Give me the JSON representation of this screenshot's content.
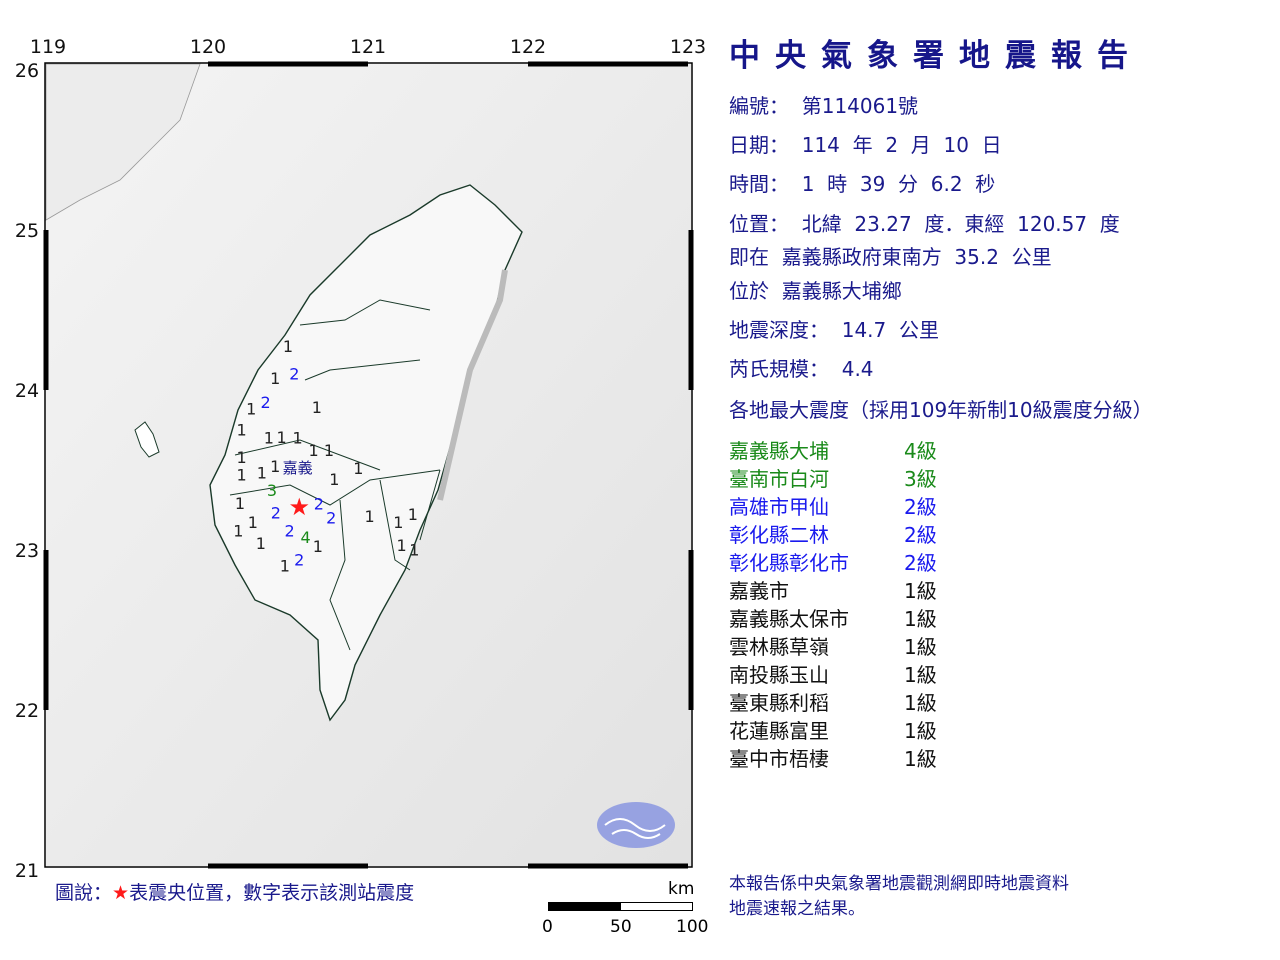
{
  "header": {
    "title": "中央氣象署地震報告"
  },
  "report": {
    "number": "編號：  第114061號",
    "date": "日期：  114  年  2  月  10  日",
    "time": "時間：  1  時  39  分  6.2  秒",
    "position": "位置：  北緯  23.27  度．東經  120.57  度",
    "relative": "即在  嘉義縣政府東南方  35.2  公里",
    "located": "位於  嘉義縣大埔鄉",
    "depth": "地震深度：  14.7  公里",
    "magnitude": "芮氏規模：  4.4",
    "intensity_heading": "各地最大震度（採用109年新制10級震度分級）"
  },
  "intensities": [
    {
      "place": "嘉義縣大埔",
      "level": "4級",
      "color": "#1a8a1a"
    },
    {
      "place": "臺南市白河",
      "level": "3級",
      "color": "#1a8a1a"
    },
    {
      "place": "高雄市甲仙",
      "level": "2級",
      "color": "#1a1aee"
    },
    {
      "place": "彰化縣二林",
      "level": "2級",
      "color": "#1a1aee"
    },
    {
      "place": "彰化縣彰化市",
      "level": "2級",
      "color": "#1a1aee"
    },
    {
      "place": "嘉義市",
      "level": "1級",
      "color": "#111111"
    },
    {
      "place": "嘉義縣太保市",
      "level": "1級",
      "color": "#111111"
    },
    {
      "place": "雲林縣草嶺",
      "level": "1級",
      "color": "#111111"
    },
    {
      "place": "南投縣玉山",
      "level": "1級",
      "color": "#111111"
    },
    {
      "place": "臺東縣利稻",
      "level": "1級",
      "color": "#111111"
    },
    {
      "place": "花蓮縣富里",
      "level": "1級",
      "color": "#111111"
    },
    {
      "place": "臺中市梧棲",
      "level": "1級",
      "color": "#111111"
    }
  ],
  "footer_note": [
    "本報告係中央氣象署地震觀測網即時地震資料",
    "地震速報之結果。"
  ],
  "map": {
    "lon_ticks": [
      "119",
      "120",
      "121",
      "122",
      "123"
    ],
    "lat_ticks": [
      "26",
      "25",
      "24",
      "23",
      "22",
      "21"
    ],
    "lon_range": [
      119,
      123
    ],
    "lat_range": [
      21,
      26
    ],
    "epicenter": {
      "lon": 120.57,
      "lat": 23.27,
      "color": "#ff1a1a"
    },
    "city_label": {
      "text": "嘉義",
      "lon": 120.56,
      "lat": 23.52
    },
    "level_colors": {
      "1": "#222222",
      "2": "#1a1aee",
      "3": "#1a8a1a",
      "4": "#1a8a1a"
    },
    "stations": [
      {
        "v": "1",
        "lon": 120.5,
        "lat": 24.28
      },
      {
        "v": "2",
        "lon": 120.54,
        "lat": 24.11
      },
      {
        "v": "1",
        "lon": 120.42,
        "lat": 24.08
      },
      {
        "v": "2",
        "lon": 120.36,
        "lat": 23.93
      },
      {
        "v": "1",
        "lon": 120.27,
        "lat": 23.89
      },
      {
        "v": "1",
        "lon": 120.21,
        "lat": 23.84
      },
      {
        "v": "1",
        "lon": 120.68,
        "lat": 23.9
      },
      {
        "v": "1",
        "lon": 120.21,
        "lat": 23.67
      },
      {
        "v": "1",
        "lon": 120.38,
        "lat": 23.71
      },
      {
        "v": "1",
        "lon": 120.56,
        "lat": 23.71
      },
      {
        "v": "1",
        "lon": 120.66,
        "lat": 23.63
      },
      {
        "v": "1",
        "lon": 120.7,
        "lat": 23.63
      },
      {
        "v": "1",
        "lon": 120.21,
        "lat": 23.56
      },
      {
        "v": "1",
        "lon": 120.28,
        "lat": 23.49
      },
      {
        "v": "1",
        "lon": 120.42,
        "lat": 23.53
      },
      {
        "v": "1",
        "lon": 120.46,
        "lat": 23.55
      },
      {
        "v": "2",
        "lon": 120.58,
        "lat": 23.46
      },
      {
        "v": "1",
        "lon": 120.79,
        "lat": 23.53
      },
      {
        "v": "1",
        "lon": 120.94,
        "lat": 23.52
      },
      {
        "v": "1",
        "lon": 120.2,
        "lat": 23.38
      },
      {
        "v": "3",
        "lon": 120.4,
        "lat": 23.38
      },
      {
        "v": "4",
        "lon": 120.61,
        "lat": 23.25
      },
      {
        "v": "2",
        "lon": 120.48,
        "lat": 23.24
      },
      {
        "v": "2",
        "lon": 120.51,
        "lat": 23.21
      },
      {
        "v": "2",
        "lon": 120.77,
        "lat": 23.21
      },
      {
        "v": "1",
        "lon": 120.19,
        "lat": 23.21
      },
      {
        "v": "1",
        "lon": 120.28,
        "lat": 23.18
      },
      {
        "v": "1",
        "lon": 121.01,
        "lat": 23.22
      },
      {
        "v": "1",
        "lon": 121.19,
        "lat": 23.18
      },
      {
        "v": "1",
        "lon": 121.28,
        "lat": 23.23
      },
      {
        "v": "1",
        "lon": 121.21,
        "lat": 23.12
      },
      {
        "v": "2",
        "lon": 120.57,
        "lat": 23.11
      },
      {
        "v": "1",
        "lon": 120.63,
        "lat": 23.03
      },
      {
        "v": "1",
        "lon": 120.33,
        "lat": 23.05
      },
      {
        "v": "1",
        "lon": 121.29,
        "lat": 23.01
      },
      {
        "v": "1",
        "lon": 120.48,
        "lat": 22.91
      }
    ],
    "legend_prefix": "圖說：",
    "legend_star": "★",
    "legend_text": "表震央位置，數字表示該測站震度",
    "scale": {
      "unit": "km",
      "labels": [
        "0",
        "50",
        "100"
      ]
    }
  }
}
